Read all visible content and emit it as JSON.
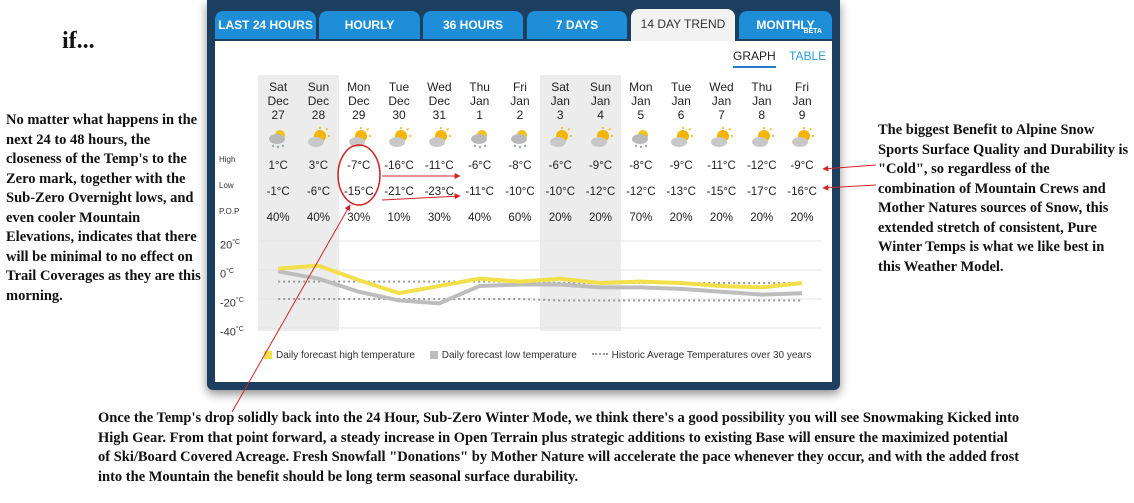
{
  "heading": "if...",
  "notes": {
    "left": "No matter what happens in the next 24 to 48 hours, the closeness of the Temp's to the Zero mark, together with the Sub-Zero Overnight lows, and even cooler Mountain Elevations, indicates that there will be minimal to no effect on Trail Coverages as they are this morning.",
    "right": "The biggest Benefit to Alpine Snow Sports Surface Quality and Durability is \"Cold\", so regardless of the combination of Mountain Crews and Mother Natures sources of Snow, this extended stretch of consistent, Pure Winter Temps is what we like best in this Weather Model.",
    "bottom": "Once the Temp's drop solidly back into the 24 Hour, Sub-Zero Winter Mode, we think there's a good possibility you will see Snowmaking Kicked into High Gear.  From that point forward, a steady increase in Open Terrain plus strategic additions to existing Base will ensure the maximized potential of Ski/Board Covered Acreage. Fresh Snowfall \"Donations\" by Mother Nature will accelerate the pace whenever they occur, and with the added frost into the Mountain the benefit should be long term seasonal surface durability."
  },
  "tabs": [
    {
      "label": "LAST 24 HOURS"
    },
    {
      "label": "HOURLY"
    },
    {
      "label": "36 HOURS"
    },
    {
      "label": "7 DAYS"
    },
    {
      "label": "14 DAY TREND",
      "active": true
    },
    {
      "label": "MONTHLY",
      "badge": "BETA"
    }
  ],
  "view_toggle": {
    "graph": "GRAPH",
    "table": "TABLE"
  },
  "row_labels": {
    "high": "High",
    "low": "Low",
    "pop": "P.O.P"
  },
  "y_axis": {
    "unit": "°C",
    "ticks": [
      "20",
      "0",
      "-20",
      "-40"
    ],
    "range": [
      -40,
      20
    ]
  },
  "days": [
    {
      "dow": "Sat",
      "mon": "Dec",
      "day": "27",
      "high": "1°C",
      "low": "-1°C",
      "pop": "40%",
      "icon": "cloudy-snow-icon",
      "weekend": true
    },
    {
      "dow": "Sun",
      "mon": "Dec",
      "day": "28",
      "high": "3°C",
      "low": "-6°C",
      "pop": "40%",
      "icon": "sun-cloud-icon",
      "weekend": true
    },
    {
      "dow": "Mon",
      "mon": "Dec",
      "day": "29",
      "high": "-7°C",
      "low": "-15°C",
      "pop": "30%",
      "icon": "sun-cloud-icon",
      "weekend": false
    },
    {
      "dow": "Tue",
      "mon": "Dec",
      "day": "30",
      "high": "-16°C",
      "low": "-21°C",
      "pop": "10%",
      "icon": "sun-cloud-icon",
      "weekend": false
    },
    {
      "dow": "Wed",
      "mon": "Dec",
      "day": "31",
      "high": "-11°C",
      "low": "-23°C",
      "pop": "30%",
      "icon": "sun-cloud-icon",
      "weekend": false
    },
    {
      "dow": "Thu",
      "mon": "Jan",
      "day": "1",
      "high": "-6°C",
      "low": "-11°C",
      "pop": "40%",
      "icon": "cloudy-snow-icon",
      "weekend": false
    },
    {
      "dow": "Fri",
      "mon": "Jan",
      "day": "2",
      "high": "-8°C",
      "low": "-10°C",
      "pop": "60%",
      "icon": "cloudy-snow-icon",
      "weekend": false
    },
    {
      "dow": "Sat",
      "mon": "Jan",
      "day": "3",
      "high": "-6°C",
      "low": "-10°C",
      "pop": "20%",
      "icon": "sun-cloud-icon",
      "weekend": true
    },
    {
      "dow": "Sun",
      "mon": "Jan",
      "day": "4",
      "high": "-9°C",
      "low": "-12°C",
      "pop": "20%",
      "icon": "sun-cloud-icon",
      "weekend": true
    },
    {
      "dow": "Mon",
      "mon": "Jan",
      "day": "5",
      "high": "-8°C",
      "low": "-12°C",
      "pop": "70%",
      "icon": "cloudy-snow-icon",
      "weekend": false
    },
    {
      "dow": "Tue",
      "mon": "Jan",
      "day": "6",
      "high": "-9°C",
      "low": "-13°C",
      "pop": "20%",
      "icon": "sun-cloud-icon",
      "weekend": false
    },
    {
      "dow": "Wed",
      "mon": "Jan",
      "day": "7",
      "high": "-11°C",
      "low": "-15°C",
      "pop": "20%",
      "icon": "sun-cloud-icon",
      "weekend": false
    },
    {
      "dow": "Thu",
      "mon": "Jan",
      "day": "8",
      "high": "-12°C",
      "low": "-17°C",
      "pop": "20%",
      "icon": "sun-cloud-icon",
      "weekend": false
    },
    {
      "dow": "Fri",
      "mon": "Jan",
      "day": "9",
      "high": "-9°C",
      "low": "-16°C",
      "pop": "20%",
      "icon": "sun-cloud-icon",
      "weekend": false
    }
  ],
  "legend": {
    "high": "Daily forecast high temperature",
    "low": "Daily forecast low temperature",
    "avg": "Historic Average Temperatures over 30 years"
  },
  "chart_data": {
    "type": "line",
    "x": [
      "Dec 27",
      "Dec 28",
      "Dec 29",
      "Dec 30",
      "Dec 31",
      "Jan 1",
      "Jan 2",
      "Jan 3",
      "Jan 4",
      "Jan 5",
      "Jan 6",
      "Jan 7",
      "Jan 8",
      "Jan 9"
    ],
    "series": [
      {
        "name": "Daily forecast high temperature",
        "values": [
          1,
          3,
          -7,
          -16,
          -11,
          -6,
          -8,
          -6,
          -9,
          -8,
          -9,
          -11,
          -12,
          -9
        ]
      },
      {
        "name": "Daily forecast low temperature",
        "values": [
          -1,
          -6,
          -15,
          -21,
          -23,
          -11,
          -10,
          -10,
          -12,
          -12,
          -13,
          -15,
          -17,
          -16
        ]
      },
      {
        "name": "Historic Average Temperatures over 30 years",
        "values": [
          -8,
          -8,
          -8,
          -8,
          -8,
          -8,
          -8,
          -9,
          -9,
          -9,
          -9,
          -9,
          -9,
          -9
        ]
      },
      {
        "values": [
          -20,
          -20,
          -20,
          -20,
          -20,
          -20,
          -20,
          -21,
          -21,
          -21,
          -21,
          -21,
          -21,
          -21
        ]
      }
    ],
    "ylim": [
      -40,
      20
    ],
    "colors": {
      "high": "#f2e04a",
      "low": "#bdbdbd",
      "avg": "#999999"
    }
  }
}
